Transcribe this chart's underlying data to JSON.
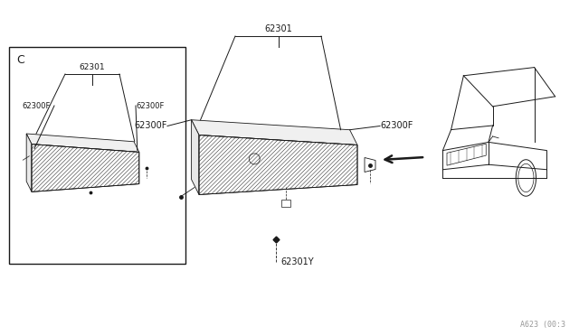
{
  "bg_color": "#ffffff",
  "line_color": "#1a1a1a",
  "gray_color": "#999999",
  "watermark": "A623 (00:3",
  "box_label": "C",
  "fig_width": 6.4,
  "fig_height": 3.72,
  "dpi": 100,
  "labels": {
    "62301": "62301",
    "62300F": "62300F",
    "62301Y": "62301Y"
  }
}
